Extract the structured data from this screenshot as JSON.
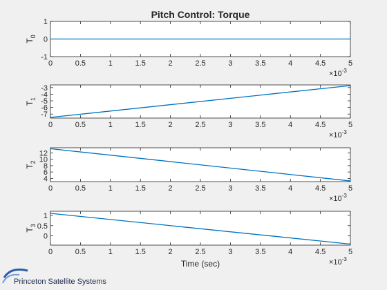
{
  "chart_data": {
    "type": "line",
    "title": "Pitch Control: Torque",
    "xlabel": "Time (sec)",
    "x_exponent_label": "×10",
    "x_exponent_power": "-3",
    "xlim": [
      0,
      5
    ],
    "xticks": [
      0,
      0.5,
      1,
      1.5,
      2,
      2.5,
      3,
      3.5,
      4,
      4.5,
      5
    ],
    "line_color": "#0072bd",
    "grid": false,
    "subplots": [
      {
        "ylabel": "T",
        "ylabel_sub": "0",
        "ylim": [
          -1,
          1
        ],
        "yticks": [
          -1,
          0,
          1
        ],
        "series": [
          {
            "x": [
              0,
              5
            ],
            "y": [
              0,
              0
            ]
          }
        ]
      },
      {
        "ylabel": "T",
        "ylabel_sub": "1",
        "ylim": [
          -7.6,
          -2.6
        ],
        "yticks": [
          -7,
          -6,
          -5,
          -4,
          -3
        ],
        "series": [
          {
            "x": [
              0,
              5
            ],
            "y": [
              -7.5,
              -2.7
            ]
          }
        ]
      },
      {
        "ylabel": "T",
        "ylabel_sub": "2",
        "ylim": [
          3,
          13.6
        ],
        "yticks": [
          4,
          6,
          8,
          10,
          12
        ],
        "series": [
          {
            "x": [
              0,
              5
            ],
            "y": [
              13.3,
              3.2
            ]
          }
        ]
      },
      {
        "ylabel": "T",
        "ylabel_sub": "3",
        "ylim": [
          -0.45,
          1.2
        ],
        "yticks": [
          0,
          0.5,
          1
        ],
        "series": [
          {
            "x": [
              0,
              5
            ],
            "y": [
              1.1,
              -0.4
            ]
          }
        ]
      }
    ]
  },
  "logo": {
    "text": "Princeton Satellite Systems",
    "color": "#2a5aa8"
  }
}
